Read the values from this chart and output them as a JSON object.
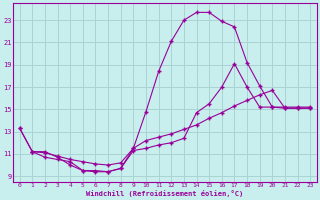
{
  "xlabel": "Windchill (Refroidissement éolien,°C)",
  "bg_color": "#c8eeed",
  "line_color": "#990099",
  "grid_color": "#aad4d4",
  "xlim": [
    -0.5,
    23.5
  ],
  "ylim": [
    8.5,
    24.5
  ],
  "yticks": [
    9,
    11,
    13,
    15,
    17,
    19,
    21,
    23
  ],
  "xticks": [
    0,
    1,
    2,
    3,
    4,
    5,
    6,
    7,
    8,
    9,
    10,
    11,
    12,
    13,
    14,
    15,
    16,
    17,
    18,
    19,
    20,
    21,
    22,
    23
  ],
  "line1_x": [
    0,
    1,
    2,
    3,
    4,
    5,
    6,
    7,
    8,
    9,
    10,
    11,
    12,
    13,
    14,
    15,
    16,
    17,
    18,
    19,
    20,
    21,
    22,
    23
  ],
  "line1_y": [
    13.3,
    11.2,
    11.2,
    10.7,
    10.0,
    9.5,
    9.5,
    9.4,
    9.7,
    11.5,
    14.8,
    18.4,
    21.1,
    23.0,
    23.7,
    23.7,
    22.9,
    22.4,
    19.2,
    17.1,
    15.2,
    15.1,
    15.1,
    15.1
  ],
  "line2_x": [
    0,
    1,
    2,
    3,
    4,
    5,
    6,
    7,
    8,
    9,
    10,
    11,
    12,
    13,
    14,
    15,
    16,
    17,
    18,
    19,
    20,
    21,
    22,
    23
  ],
  "line2_y": [
    13.3,
    11.2,
    11.1,
    10.8,
    10.5,
    10.3,
    10.1,
    10.0,
    10.2,
    11.5,
    12.2,
    12.5,
    12.8,
    13.2,
    13.6,
    14.2,
    14.7,
    15.3,
    15.8,
    16.3,
    16.7,
    15.1,
    15.1,
    15.1
  ],
  "line3_x": [
    1,
    2,
    3,
    4,
    5,
    6,
    7,
    8,
    9,
    10,
    11,
    12,
    13,
    14,
    15,
    16,
    17,
    18,
    19,
    20,
    21,
    22,
    23
  ],
  "line3_y": [
    11.2,
    10.7,
    10.5,
    10.3,
    9.5,
    9.4,
    9.4,
    9.7,
    11.3,
    11.5,
    11.8,
    12.0,
    12.4,
    14.7,
    15.5,
    17.0,
    19.1,
    17.0,
    15.2,
    15.2,
    15.2,
    15.2,
    15.2
  ]
}
